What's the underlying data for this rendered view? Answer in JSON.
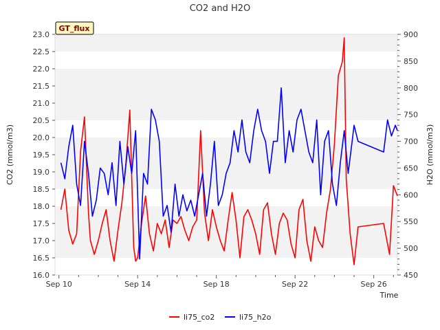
{
  "chart_data": {
    "type": "line",
    "title": "CO2 and H2O",
    "xlabel": "Time",
    "ylabel_left": "CO2 (mmol/m3)",
    "ylabel_right": "H2O (mmol/m3)",
    "badge": "GT_flux",
    "x_ticks": [
      "Sep 10",
      "Sep 14",
      "Sep 18",
      "Sep 22",
      "Sep 26"
    ],
    "xlim": [
      9.8,
      27.2
    ],
    "ylim_left": [
      16.0,
      23.0
    ],
    "yticks_left": [
      "16.0",
      "16.5",
      "17.0",
      "17.5",
      "18.0",
      "18.5",
      "19.0",
      "19.5",
      "20.0",
      "20.5",
      "21.0",
      "21.5",
      "22.0",
      "22.5",
      "23.0"
    ],
    "ylim_right": [
      450,
      900
    ],
    "yticks_right": [
      "450",
      "500",
      "550",
      "600",
      "650",
      "700",
      "750",
      "800",
      "850",
      "900"
    ],
    "grid": "horizontal bands",
    "legend_position": "bottom",
    "series": [
      {
        "name": "li75_co2",
        "axis": "left",
        "color": "#ff0000",
        "x": [
          10.1,
          10.3,
          10.5,
          10.7,
          10.9,
          11.1,
          11.3,
          11.4,
          11.5,
          11.6,
          11.8,
          12.0,
          12.2,
          12.4,
          12.6,
          12.8,
          13.0,
          13.2,
          13.4,
          13.6,
          13.8,
          13.9,
          14.0,
          14.2,
          14.4,
          14.6,
          14.8,
          15.0,
          15.2,
          15.4,
          15.6,
          15.8,
          16.0,
          16.2,
          16.4,
          16.6,
          16.8,
          17.0,
          17.2,
          17.4,
          17.6,
          17.8,
          18.0,
          18.2,
          18.4,
          18.6,
          18.8,
          19.0,
          19.2,
          19.4,
          19.6,
          19.8,
          20.0,
          20.2,
          20.4,
          20.6,
          20.8,
          21.0,
          21.2,
          21.4,
          21.6,
          21.8,
          22.0,
          22.2,
          22.4,
          22.6,
          22.8,
          23.0,
          23.2,
          23.4,
          23.6,
          23.8,
          24.0,
          24.2,
          24.4,
          24.5,
          24.6,
          24.8,
          25.0,
          25.2,
          26.5,
          26.8,
          27.0,
          27.2
        ],
        "y": [
          17.9,
          18.5,
          17.3,
          16.9,
          17.2,
          19.6,
          20.6,
          19.2,
          17.8,
          17.0,
          16.6,
          17.0,
          17.5,
          17.9,
          17.0,
          16.4,
          17.3,
          18.1,
          19.2,
          20.8,
          16.8,
          16.4,
          16.5,
          17.5,
          18.3,
          17.2,
          16.7,
          17.5,
          17.2,
          17.6,
          16.8,
          17.6,
          17.5,
          17.7,
          17.3,
          17.0,
          17.4,
          17.6,
          20.2,
          17.8,
          17.0,
          17.9,
          17.4,
          17.0,
          16.7,
          17.6,
          18.4,
          17.6,
          16.5,
          17.7,
          17.9,
          17.6,
          17.2,
          16.6,
          17.9,
          18.1,
          17.2,
          16.6,
          17.5,
          17.8,
          17.6,
          16.9,
          16.5,
          17.9,
          18.2,
          17.0,
          16.4,
          17.4,
          17.0,
          16.8,
          17.8,
          18.5,
          19.8,
          21.8,
          22.2,
          22.9,
          18.8,
          17.2,
          16.3,
          17.4,
          17.5,
          16.6,
          18.6,
          18.3
        ]
      },
      {
        "name": "li75_h2o",
        "axis": "right",
        "color": "#0000ff",
        "x": [
          10.1,
          10.3,
          10.5,
          10.7,
          10.9,
          11.1,
          11.3,
          11.5,
          11.7,
          11.9,
          12.1,
          12.3,
          12.5,
          12.7,
          12.9,
          13.1,
          13.3,
          13.5,
          13.7,
          13.9,
          14.1,
          14.3,
          14.5,
          14.7,
          14.9,
          15.1,
          15.3,
          15.5,
          15.7,
          15.9,
          16.1,
          16.3,
          16.5,
          16.7,
          16.9,
          17.1,
          17.3,
          17.5,
          17.7,
          17.9,
          18.1,
          18.3,
          18.5,
          18.7,
          18.9,
          19.1,
          19.3,
          19.5,
          19.7,
          19.9,
          20.1,
          20.3,
          20.5,
          20.7,
          20.9,
          21.1,
          21.3,
          21.5,
          21.7,
          21.9,
          22.1,
          22.3,
          22.5,
          22.7,
          22.9,
          23.1,
          23.3,
          23.5,
          23.7,
          23.9,
          24.1,
          24.3,
          24.5,
          24.7,
          24.9,
          25.0,
          25.2,
          26.5,
          26.7,
          26.9,
          27.1,
          27.2
        ],
        "y": [
          660,
          630,
          690,
          730,
          620,
          580,
          700,
          640,
          560,
          590,
          650,
          640,
          600,
          660,
          580,
          700,
          620,
          690,
          640,
          720,
          480,
          640,
          620,
          760,
          740,
          700,
          560,
          580,
          530,
          620,
          560,
          600,
          570,
          590,
          560,
          600,
          640,
          560,
          620,
          700,
          580,
          600,
          640,
          660,
          720,
          680,
          740,
          680,
          660,
          720,
          760,
          720,
          700,
          640,
          700,
          700,
          800,
          660,
          720,
          680,
          740,
          760,
          720,
          680,
          660,
          740,
          600,
          700,
          720,
          620,
          580,
          660,
          720,
          640,
          700,
          730,
          700,
          680,
          740,
          710,
          730,
          720
        ]
      }
    ]
  },
  "legend": {
    "co2_label": "li75_co2",
    "h2o_label": "li75_h2o"
  }
}
